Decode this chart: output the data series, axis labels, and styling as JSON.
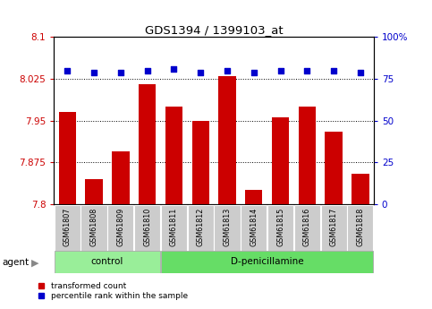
{
  "title": "GDS1394 / 1399103_at",
  "samples": [
    "GSM61807",
    "GSM61808",
    "GSM61809",
    "GSM61810",
    "GSM61811",
    "GSM61812",
    "GSM61813",
    "GSM61814",
    "GSM61815",
    "GSM61816",
    "GSM61817",
    "GSM61818"
  ],
  "red_values": [
    7.965,
    7.845,
    7.895,
    8.015,
    7.975,
    7.95,
    8.03,
    7.825,
    7.955,
    7.975,
    7.93,
    7.855
  ],
  "blue_values": [
    80,
    79,
    79,
    80,
    81,
    79,
    80,
    79,
    80,
    80,
    80,
    79
  ],
  "ylim_left": [
    7.8,
    8.1
  ],
  "ylim_right": [
    0,
    100
  ],
  "yticks_left": [
    7.8,
    7.875,
    7.95,
    8.025,
    8.1
  ],
  "yticks_right": [
    0,
    25,
    50,
    75,
    100
  ],
  "ytick_labels_left": [
    "7.8",
    "7.875",
    "7.95",
    "8.025",
    "8.1"
  ],
  "ytick_labels_right": [
    "0",
    "25",
    "50",
    "75",
    "100%"
  ],
  "hlines": [
    7.875,
    7.95,
    8.025
  ],
  "control_count": 4,
  "control_label": "control",
  "treatment_label": "D-penicillamine",
  "agent_label": "agent",
  "legend_red": "transformed count",
  "legend_blue": "percentile rank within the sample",
  "bar_color": "#cc0000",
  "dot_color": "#0000cc",
  "control_bg": "#99ee99",
  "treatment_bg": "#66dd66",
  "tick_label_bg": "#cccccc",
  "bar_bottom": 7.8,
  "bar_width": 0.65
}
